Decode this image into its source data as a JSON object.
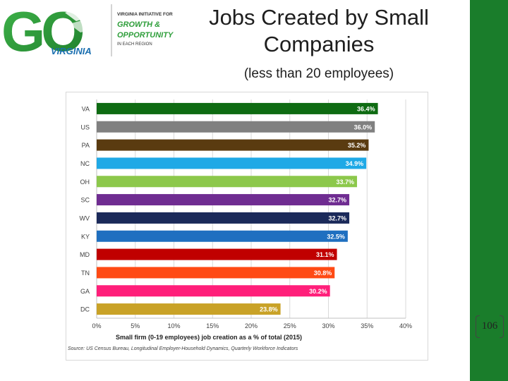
{
  "slide": {
    "title_line1": "Jobs Created by Small",
    "title_line2": "Companies",
    "subtitle": "(less than 20 employees)",
    "page_number": "106"
  },
  "logo": {
    "big_text": "GO",
    "state": "VIRGINIA",
    "tag_line1": "VIRGINIA INITIATIVE FOR",
    "tag_line2": "GROWTH &",
    "tag_line3": "OPPORTUNITY",
    "tag_line4": "IN EACH REGION"
  },
  "colors": {
    "brand_green": "#1a7d2b",
    "logo_green": "#2e9e3a"
  },
  "chart_data": {
    "type": "bar",
    "orientation": "horizontal",
    "categories": [
      "VA",
      "US",
      "PA",
      "NC",
      "OH",
      "SC",
      "WV",
      "KY",
      "MD",
      "TN",
      "GA",
      "DC"
    ],
    "values": [
      36.4,
      36.0,
      35.2,
      34.9,
      33.7,
      32.7,
      32.7,
      32.5,
      31.1,
      30.8,
      30.2,
      23.8
    ],
    "value_labels": [
      "36.4%",
      "36.0%",
      "35.2%",
      "34.9%",
      "33.7%",
      "32.7%",
      "32.7%",
      "32.5%",
      "31.1%",
      "30.8%",
      "30.2%",
      "23.8%"
    ],
    "bar_colors": [
      "#0e6b12",
      "#808080",
      "#5a3b10",
      "#1fa9e6",
      "#8cc84b",
      "#6f2c91",
      "#1b2a5a",
      "#1f6fc0",
      "#c00000",
      "#ff4a14",
      "#ff1f7a",
      "#c9a227"
    ],
    "label_colors": [
      "#ffffff",
      "#ffffff",
      "#ffffff",
      "#ffffff",
      "#ffffff",
      "#ffffff",
      "#ffffff",
      "#ffffff",
      "#ffffff",
      "#ffffff",
      "#ffffff",
      "#ffffff"
    ],
    "xlim": [
      0,
      40
    ],
    "xticks": [
      0,
      5,
      10,
      15,
      20,
      25,
      30,
      35,
      40
    ],
    "xtick_labels": [
      "0%",
      "5%",
      "10%",
      "15%",
      "20%",
      "25%",
      "30%",
      "35%",
      "40%"
    ],
    "xlabel": "Small firm (0-19 employees) job creation as a % of total (2015)",
    "source": "Source: US Census Bureau, Longitudinal Employer-Household Dynamics, Quarterly Workforce Indicators",
    "grid": true
  }
}
